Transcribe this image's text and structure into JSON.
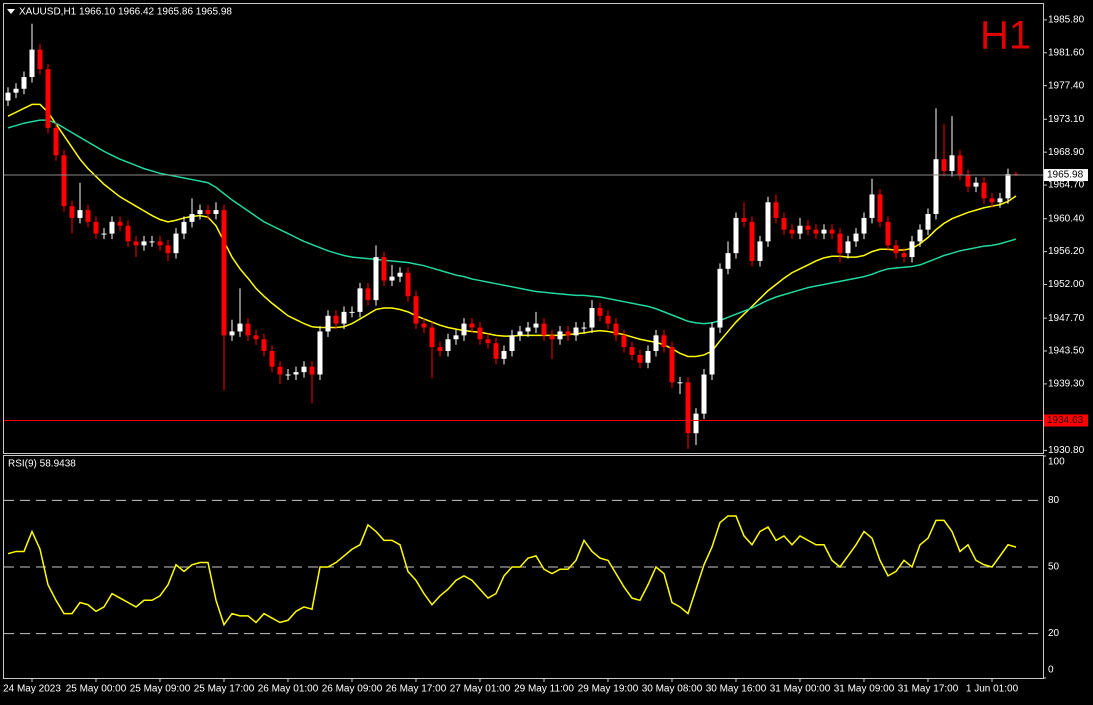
{
  "chart_data": [
    {
      "type": "candlestick",
      "title": "XAUUSD,H1 1966.10 1966.42 1965.86 1965.98",
      "watermark": "H1",
      "up_color": "#ffffff",
      "down_color": "#ff0000",
      "categories": [
        null,
        null,
        null,
        "24 May 2023",
        null,
        null,
        null,
        null,
        null,
        null,
        null,
        "25 May 00:00",
        null,
        null,
        null,
        null,
        null,
        null,
        null,
        "25 May 09:00",
        null,
        null,
        null,
        null,
        null,
        null,
        null,
        "25 May 17:00",
        null,
        null,
        null,
        null,
        null,
        null,
        null,
        "26 May 01:00",
        null,
        null,
        null,
        null,
        null,
        null,
        null,
        "26 May 09:00",
        null,
        null,
        null,
        null,
        null,
        null,
        null,
        "26 May 17:00",
        null,
        null,
        null,
        null,
        null,
        null,
        null,
        "27 May 01:00",
        null,
        null,
        null,
        null,
        null,
        null,
        null,
        "29 May 11:00",
        null,
        null,
        null,
        null,
        null,
        null,
        null,
        "29 May 19:00",
        null,
        null,
        null,
        null,
        null,
        null,
        null,
        "30 May 08:00",
        null,
        null,
        null,
        null,
        null,
        null,
        null,
        "30 May 16:00",
        null,
        null,
        null,
        null,
        null,
        null,
        null,
        "31 May 00:00",
        null,
        null,
        null,
        null,
        null,
        null,
        null,
        "31 May 09:00",
        null,
        null,
        null,
        null,
        null,
        null,
        null,
        "31 May 17:00",
        null,
        null,
        null,
        null,
        null,
        null,
        null,
        "1 Jun 01:00",
        null,
        null,
        null
      ],
      "open": [
        1975.5,
        1976.5,
        1977.0,
        1978.5,
        1982.0,
        1979.5,
        1972.0,
        1968.5,
        1962.0,
        1960.5,
        1961.5,
        1960.0,
        1958.5,
        1958.5,
        1960.0,
        1959.5,
        1957.5,
        1957.0,
        1957.5,
        1957.5,
        1957.0,
        1956.0,
        1958.5,
        1960.0,
        1961.0,
        1961.5,
        1961.0,
        1961.5,
        1945.5,
        1946.0,
        1947.0,
        1945.5,
        1945.0,
        1943.5,
        1941.5,
        1940.5,
        1940.5,
        1940.8,
        1941.5,
        1940.5,
        1946.0,
        1948.0,
        1947.0,
        1948.5,
        1948.5,
        1951.5,
        1950.0,
        1955.5,
        1952.5,
        1953.0,
        1953.5,
        1950.5,
        1947.0,
        1946.5,
        1944.0,
        1943.5,
        1945.0,
        1945.5,
        1947.0,
        1946.5,
        1945.0,
        1944.5,
        1942.5,
        1943.5,
        1945.5,
        1946.0,
        1946.5,
        1947.0,
        1945.5,
        1945.0,
        1946.0,
        1945.5,
        1946.5,
        1946.5,
        1949.0,
        1948.0,
        1947.0,
        1945.5,
        1944.0,
        1943.0,
        1942.0,
        1943.5,
        1945.5,
        1944.0,
        1939.5,
        1939.5,
        1933.0,
        1935.5,
        1940.5,
        1946.5,
        1954.0,
        1956.0,
        1960.5,
        1960.0,
        1955.0,
        1957.5,
        1962.5,
        1960.5,
        1959.0,
        1958.5,
        1959.5,
        1959.0,
        1958.5,
        1959.0,
        1958.5,
        1956.0,
        1957.5,
        1958.5,
        1960.5,
        1963.5,
        1960.0,
        1957.0,
        1956.0,
        1955.5,
        1957.5,
        1959.0,
        1961.0,
        1968.0,
        1966.5,
        1968.5,
        1966.0,
        1964.5,
        1965.0,
        1963.0,
        1962.5,
        1963.0,
        1966.1
      ],
      "high": [
        1977.2,
        1977.7,
        1979.2,
        1985.3,
        1982.7,
        1980.2,
        1972.7,
        1969.2,
        1962.7,
        1965.0,
        1962.2,
        1960.7,
        1959.2,
        1960.7,
        1960.7,
        1960.2,
        1958.2,
        1958.2,
        1958.2,
        1958.2,
        1957.7,
        1959.2,
        1960.7,
        1963.0,
        1962.2,
        1962.2,
        1962.5,
        1962.2,
        1947.5,
        1951.5,
        1947.7,
        1946.2,
        1945.7,
        1944.2,
        1942.2,
        1941.2,
        1941.5,
        1942.2,
        1942.2,
        1946.7,
        1948.7,
        1948.7,
        1949.2,
        1949.2,
        1952.2,
        1952.2,
        1957.0,
        1956.2,
        1954.5,
        1954.2,
        1954.2,
        1951.2,
        1947.7,
        1947.2,
        1944.7,
        1945.7,
        1946.2,
        1947.7,
        1947.7,
        1947.2,
        1945.7,
        1945.2,
        1944.2,
        1946.2,
        1946.7,
        1947.2,
        1948.5,
        1947.7,
        1946.2,
        1946.7,
        1946.7,
        1947.2,
        1947.2,
        1950.0,
        1949.7,
        1948.7,
        1947.7,
        1946.2,
        1944.7,
        1943.7,
        1944.2,
        1946.2,
        1946.2,
        1944.7,
        1940.2,
        1940.2,
        1936.2,
        1941.2,
        1947.2,
        1954.7,
        1957.5,
        1961.2,
        1962.5,
        1960.7,
        1958.2,
        1963.2,
        1963.5,
        1961.2,
        1959.7,
        1960.5,
        1960.2,
        1959.7,
        1959.7,
        1959.7,
        1959.2,
        1958.2,
        1959.2,
        1961.2,
        1965.5,
        1964.2,
        1960.7,
        1957.7,
        1956.7,
        1958.2,
        1959.7,
        1961.7,
        1974.5,
        1972.5,
        1973.5,
        1969.2,
        1966.7,
        1965.7,
        1965.7,
        1963.7,
        1963.7,
        1966.8,
        1966.42
      ],
      "low": [
        1974.8,
        1975.8,
        1976.3,
        1977.8,
        1978.8,
        1971.3,
        1967.8,
        1961.3,
        1958.5,
        1959.8,
        1959.3,
        1957.8,
        1957.8,
        1957.8,
        1958.8,
        1956.8,
        1955.5,
        1956.3,
        1956.8,
        1956.3,
        1955.0,
        1955.3,
        1957.8,
        1959.3,
        1960.3,
        1960.3,
        1960.3,
        1938.5,
        1944.8,
        1945.3,
        1944.8,
        1944.3,
        1942.8,
        1940.8,
        1939.3,
        1939.8,
        1939.8,
        1940.1,
        1936.8,
        1939.8,
        1945.3,
        1946.3,
        1946.3,
        1947.8,
        1947.8,
        1949.3,
        1949.3,
        1951.8,
        1951.8,
        1952.3,
        1949.8,
        1946.3,
        1945.8,
        1940.0,
        1942.8,
        1942.8,
        1944.3,
        1944.8,
        1945.8,
        1944.3,
        1943.8,
        1941.8,
        1941.8,
        1942.8,
        1944.8,
        1945.3,
        1945.8,
        1944.8,
        1942.5,
        1944.3,
        1944.8,
        1944.8,
        1945.8,
        1945.8,
        1947.3,
        1946.3,
        1944.8,
        1943.3,
        1942.3,
        1941.3,
        1941.3,
        1942.8,
        1943.3,
        1938.8,
        1938.0,
        1931.0,
        1931.5,
        1934.8,
        1939.8,
        1945.8,
        1953.3,
        1955.3,
        1959.3,
        1954.3,
        1954.3,
        1956.8,
        1959.8,
        1958.3,
        1957.8,
        1957.8,
        1958.3,
        1957.8,
        1957.8,
        1957.8,
        1954.8,
        1955.3,
        1956.8,
        1957.8,
        1959.8,
        1959.3,
        1956.3,
        1955.3,
        1954.8,
        1954.8,
        1956.8,
        1958.3,
        1960.3,
        1965.8,
        1965.8,
        1965.3,
        1963.8,
        1963.8,
        1962.3,
        1961.8,
        1961.8,
        1962.3,
        1965.86
      ],
      "close": [
        1976.5,
        1977.0,
        1978.5,
        1982.0,
        1979.5,
        1972.0,
        1968.5,
        1962.0,
        1960.5,
        1961.5,
        1960.0,
        1958.5,
        1958.5,
        1960.0,
        1959.5,
        1957.5,
        1957.0,
        1957.5,
        1957.5,
        1957.0,
        1956.0,
        1958.5,
        1960.0,
        1961.0,
        1961.5,
        1961.0,
        1961.5,
        1945.5,
        1946.0,
        1947.0,
        1945.5,
        1945.0,
        1943.5,
        1941.5,
        1940.5,
        1940.5,
        1940.8,
        1941.5,
        1940.5,
        1946.0,
        1948.0,
        1947.0,
        1948.5,
        1948.5,
        1951.5,
        1950.0,
        1955.5,
        1952.5,
        1953.0,
        1953.5,
        1950.5,
        1947.0,
        1946.5,
        1944.0,
        1943.5,
        1945.0,
        1945.5,
        1947.0,
        1946.5,
        1945.0,
        1944.5,
        1942.5,
        1943.5,
        1945.5,
        1946.0,
        1946.5,
        1947.0,
        1945.5,
        1945.0,
        1946.0,
        1945.5,
        1946.5,
        1946.5,
        1949.0,
        1948.0,
        1947.0,
        1945.5,
        1944.0,
        1943.0,
        1942.0,
        1943.5,
        1945.5,
        1944.0,
        1939.5,
        1939.5,
        1933.0,
        1935.5,
        1940.5,
        1946.5,
        1954.0,
        1956.0,
        1960.5,
        1960.0,
        1955.0,
        1957.5,
        1962.5,
        1960.5,
        1959.0,
        1958.5,
        1959.5,
        1959.0,
        1958.5,
        1959.0,
        1958.5,
        1956.0,
        1957.5,
        1958.5,
        1960.5,
        1963.5,
        1960.0,
        1957.0,
        1956.0,
        1955.5,
        1957.5,
        1959.0,
        1961.0,
        1968.0,
        1966.5,
        1968.5,
        1966.0,
        1964.5,
        1965.0,
        1963.0,
        1962.5,
        1963.0,
        1966.1,
        1965.98
      ],
      "overlays": [
        {
          "color": "#ffff00",
          "values": [
            1973.5,
            1974.0,
            1974.5,
            1975.0,
            1975.0,
            1974.0,
            1972.5,
            1971.0,
            1969.5,
            1968.0,
            1966.8,
            1965.8,
            1964.8,
            1964.0,
            1963.2,
            1962.6,
            1962.0,
            1961.4,
            1960.8,
            1960.3,
            1960.0,
            1960.2,
            1960.5,
            1960.7,
            1960.8,
            1960.6,
            1959.5,
            1957.5,
            1955.5,
            1954.0,
            1952.8,
            1951.5,
            1950.5,
            1949.6,
            1948.8,
            1948.0,
            1947.5,
            1947.0,
            1946.6,
            1946.5,
            1946.5,
            1946.5,
            1946.6,
            1947.0,
            1947.6,
            1948.2,
            1948.8,
            1949.0,
            1949.0,
            1948.8,
            1948.5,
            1948.0,
            1947.6,
            1947.2,
            1946.8,
            1946.5,
            1946.3,
            1946.1,
            1946.0,
            1945.9,
            1945.7,
            1945.5,
            1945.4,
            1945.4,
            1945.5,
            1945.5,
            1945.5,
            1945.5,
            1945.5,
            1945.5,
            1945.6,
            1945.7,
            1945.8,
            1946.0,
            1946.1,
            1946.0,
            1945.8,
            1945.6,
            1945.3,
            1945.0,
            1944.8,
            1944.6,
            1944.3,
            1943.8,
            1943.2,
            1942.8,
            1942.8,
            1943.0,
            1943.5,
            1944.8,
            1946.0,
            1947.2,
            1948.2,
            1949.2,
            1950.2,
            1951.2,
            1952.0,
            1952.8,
            1953.5,
            1954.0,
            1954.5,
            1955.0,
            1955.4,
            1955.6,
            1955.6,
            1955.5,
            1955.5,
            1955.7,
            1956.2,
            1956.5,
            1956.5,
            1956.4,
            1956.4,
            1956.6,
            1957.2,
            1958.0,
            1959.0,
            1959.8,
            1960.4,
            1960.8,
            1961.2,
            1961.5,
            1961.8,
            1962.0,
            1962.2,
            1962.6,
            1963.3
          ]
        },
        {
          "color": "#20d8a0",
          "values": [
            1972.0,
            1972.3,
            1972.6,
            1972.8,
            1973.0,
            1973.0,
            1972.6,
            1972.0,
            1971.4,
            1970.8,
            1970.2,
            1969.6,
            1969.0,
            1968.5,
            1968.0,
            1967.6,
            1967.2,
            1966.8,
            1966.5,
            1966.2,
            1966.0,
            1965.8,
            1965.6,
            1965.4,
            1965.2,
            1965.0,
            1964.4,
            1963.6,
            1962.8,
            1962.1,
            1961.4,
            1960.7,
            1960.0,
            1959.5,
            1959.0,
            1958.5,
            1958.0,
            1957.5,
            1957.1,
            1956.7,
            1956.3,
            1956.0,
            1955.7,
            1955.5,
            1955.4,
            1955.3,
            1955.2,
            1955.1,
            1955.0,
            1954.9,
            1954.8,
            1954.6,
            1954.4,
            1954.1,
            1953.8,
            1953.5,
            1953.2,
            1953.0,
            1952.7,
            1952.5,
            1952.3,
            1952.1,
            1951.9,
            1951.7,
            1951.5,
            1951.3,
            1951.1,
            1951.0,
            1950.9,
            1950.8,
            1950.7,
            1950.6,
            1950.6,
            1950.5,
            1950.4,
            1950.2,
            1950.0,
            1949.8,
            1949.6,
            1949.4,
            1949.2,
            1948.9,
            1948.5,
            1948.1,
            1947.7,
            1947.3,
            1947.1,
            1947.0,
            1947.1,
            1947.4,
            1947.8,
            1948.2,
            1948.6,
            1949.0,
            1949.5,
            1950.0,
            1950.4,
            1950.7,
            1951.0,
            1951.3,
            1951.6,
            1951.8,
            1952.0,
            1952.2,
            1952.4,
            1952.6,
            1952.8,
            1953.0,
            1953.3,
            1953.7,
            1954.0,
            1954.1,
            1954.2,
            1954.3,
            1954.5,
            1954.9,
            1955.3,
            1955.7,
            1956.0,
            1956.3,
            1956.5,
            1956.7,
            1956.9,
            1957.0,
            1957.2,
            1957.5,
            1957.8
          ]
        }
      ],
      "current_price": 1965.98,
      "level_line": 1934.63,
      "ylim": [
        1930.6,
        1987.7
      ],
      "yticks": [
        {
          "value": 1985.8,
          "label": "1985.80"
        },
        {
          "value": 1981.6,
          "label": "1981.60"
        },
        {
          "value": 1977.4,
          "label": "1977.40"
        },
        {
          "value": 1973.1,
          "label": "1973.10"
        },
        {
          "value": 1968.9,
          "label": "1968.90"
        },
        {
          "value": 1964.7,
          "label": "1964.70"
        },
        {
          "value": 1960.4,
          "label": "1960.40"
        },
        {
          "value": 1956.2,
          "label": "1956.20"
        },
        {
          "value": 1952.0,
          "label": "1952.00"
        },
        {
          "value": 1947.7,
          "label": "1947.70"
        },
        {
          "value": 1943.5,
          "label": "1943.50"
        },
        {
          "value": 1939.3,
          "label": "1939.30"
        },
        {
          "value": 1930.8,
          "label": "1930.80"
        }
      ]
    },
    {
      "type": "line",
      "title": "RSI(9) 58.9438",
      "color": "#ffff00",
      "values": [
        56,
        57,
        57,
        66,
        58,
        42,
        35,
        29,
        29,
        34,
        33,
        30,
        32,
        38,
        36,
        34,
        32,
        35,
        35,
        37,
        42,
        51,
        48,
        51,
        52,
        52,
        35,
        24,
        29,
        28,
        28,
        25,
        29,
        27,
        25,
        26,
        30,
        32,
        31,
        50,
        50,
        52,
        55,
        58,
        60,
        69,
        66,
        62,
        62,
        60,
        48,
        44,
        38,
        33,
        37,
        40,
        44,
        46,
        44,
        40,
        36,
        38,
        46,
        50,
        50,
        54,
        55,
        49,
        47,
        49,
        49,
        53,
        62,
        57,
        54,
        53,
        47,
        41,
        36,
        35,
        42,
        50,
        47,
        34,
        32,
        29,
        40,
        51,
        59,
        70,
        73,
        73,
        64,
        60,
        66,
        68,
        62,
        64,
        60,
        64,
        62,
        60,
        60,
        53,
        50,
        55,
        60,
        66,
        63,
        53,
        46,
        48,
        53,
        50,
        60,
        63,
        71,
        71,
        66,
        57,
        60,
        53,
        51,
        50,
        55,
        60,
        58.9438
      ],
      "ylim": [
        0,
        100
      ],
      "yticks": [
        100,
        80,
        50,
        20,
        0
      ]
    }
  ]
}
